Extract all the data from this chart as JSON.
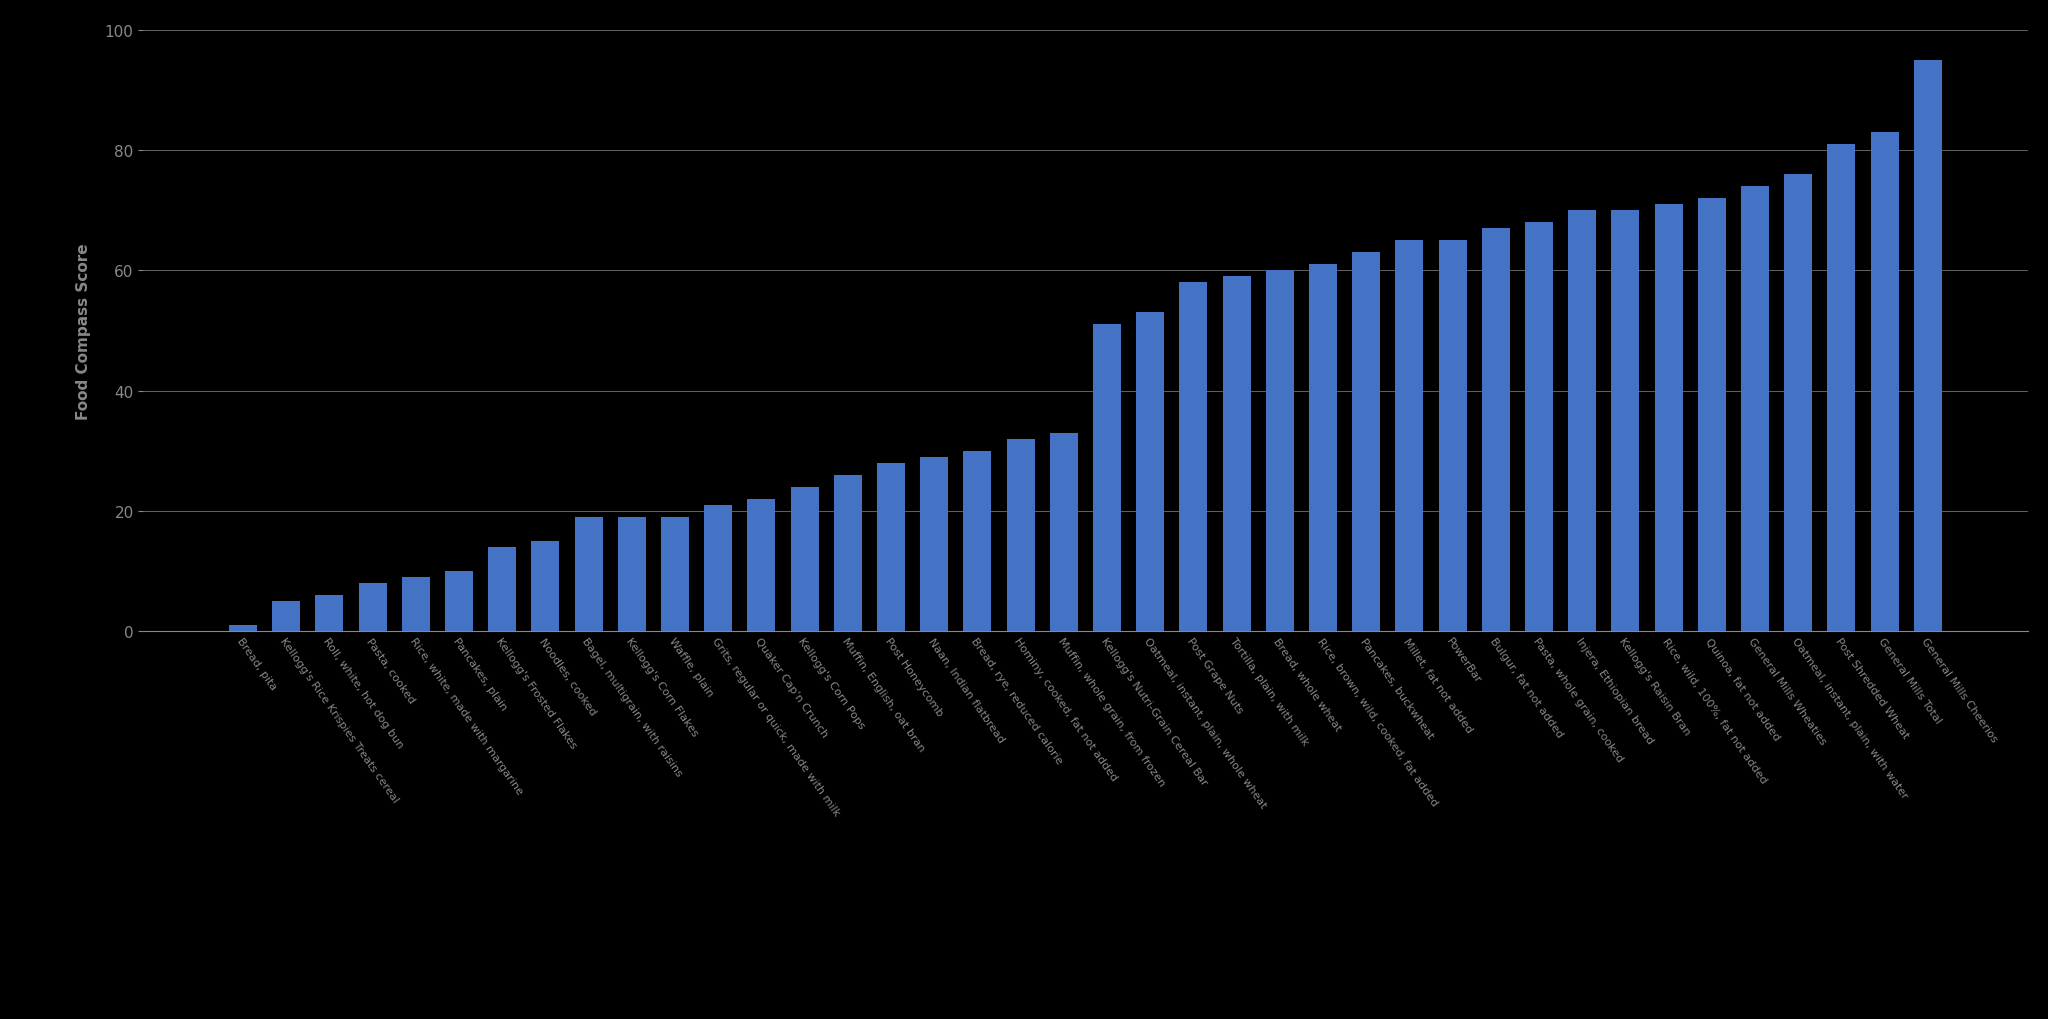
{
  "categories": [
    "Bread, pita",
    "Kellogg's Rice Krispies Treats cereal",
    "Roll, white, hot dog bun",
    "Pasta, cooked",
    "Rice, white, made with margarine",
    "Pancakes, plain",
    "Kellogg's Frosted Flakes",
    "Noodles, cooked",
    "Bagel, multigrain, with raisins",
    "Kellogg's Corn Flakes",
    "Waffle, plain",
    "Grits, regular or quick, made with milk",
    "Quaker Cap'n Crunch",
    "Kellogg's Corn Pops",
    "Muffin, English, oat bran",
    "Post Honeycomb",
    "Naan, Indian flatbread",
    "Bread, rye, reduced calorie",
    "Hominy, cooked, fat not added",
    "Muffin, whole grain, from frozen",
    "Kellogg's Nutri-Grain Cereal Bar",
    "Oatmeal, instant, plain, whole wheat",
    "Post Grape Nuts",
    "Tortilla, plain, with milk",
    "Bread, whole wheat",
    "Rice, brown, wild, cooked, fat added",
    "Pancakes, buckwheat",
    "Millet, fat not added",
    "PowerBar",
    "Bulgur, fat not added",
    "Pasta, whole grain, cooked",
    "Injera, Ethiopian bread",
    "Kellogg's Raisin Bran",
    "Rice, wild, 100%, fat not added",
    "Quinoa, fat not added",
    "General Mills Wheaties",
    "Oatmeal, instant, plain, with water",
    "Post Shredded Wheat",
    "General Mills Total",
    "General Mills Cheerios"
  ],
  "values": [
    1,
    5,
    6,
    8,
    9,
    10,
    14,
    15,
    19,
    19,
    19,
    21,
    22,
    24,
    26,
    28,
    29,
    30,
    32,
    33,
    51,
    53,
    58,
    59,
    60,
    61,
    63,
    65,
    65,
    67,
    68,
    70,
    70,
    71,
    72,
    74,
    76,
    81,
    83,
    95
  ],
  "bar_color": "#4472C4",
  "ylabel": "Food Compass Score",
  "ylim": [
    0,
    100
  ],
  "yticks": [
    0,
    20,
    40,
    60,
    80,
    100
  ],
  "background_color": "#000000",
  "grid_color": "#888888",
  "tick_color": "#888888",
  "label_color": "#888888",
  "bottom_line_color": "#888888"
}
